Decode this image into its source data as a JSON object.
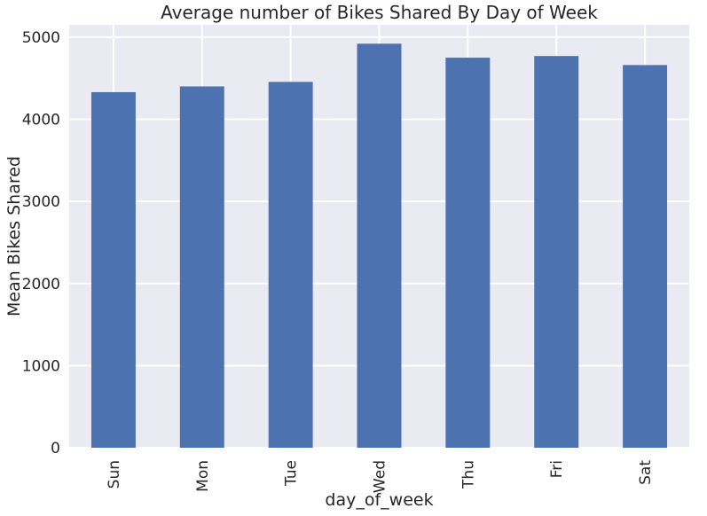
{
  "chart_data": {
    "type": "bar",
    "title": "Average number of Bikes Shared By Day of Week",
    "xlabel": "day_of_week",
    "ylabel": "Mean Bikes Shared",
    "categories": [
      "Sun",
      "Mon",
      "Tue",
      "Wed",
      "Thu",
      "Fri",
      "Sat"
    ],
    "values": [
      4330,
      4400,
      4455,
      4920,
      4750,
      4770,
      4660
    ],
    "ylim": [
      0,
      5000
    ],
    "yticks": [
      0,
      1000,
      2000,
      3000,
      4000,
      5000
    ],
    "grid": true,
    "bar_color": "#4c72b0",
    "background_color": "#eaeaf2"
  }
}
